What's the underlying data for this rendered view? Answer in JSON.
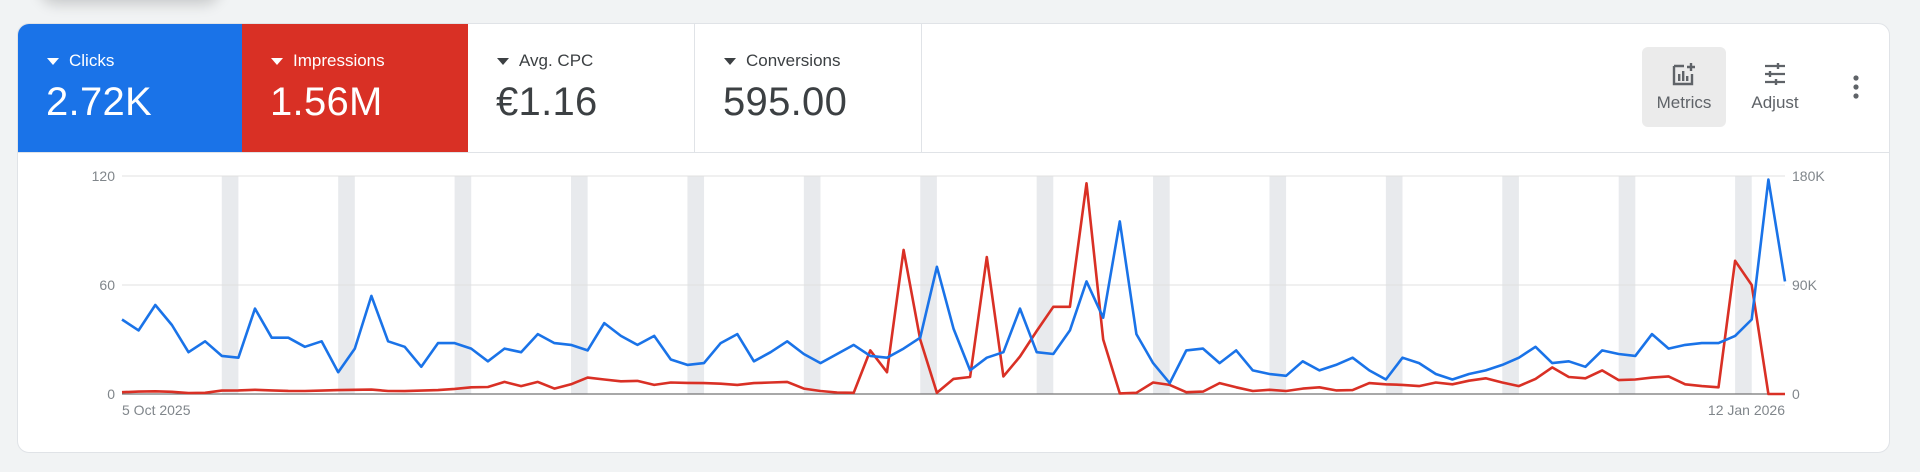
{
  "metrics": [
    {
      "label": "Clicks",
      "value": "2.72K",
      "color": "#1a73e8"
    },
    {
      "label": "Impressions",
      "value": "1.56M",
      "color": "#d93025"
    },
    {
      "label": "Avg. CPC",
      "value": "€1.16"
    },
    {
      "label": "Conversions",
      "value": "595.00"
    }
  ],
  "toolbar": {
    "metrics_label": "Metrics",
    "adjust_label": "Adjust",
    "more_icon": "more-vert-icon"
  },
  "chart_data": {
    "type": "line",
    "title": "",
    "x_start_label": "5 Oct 2025",
    "x_end_label": "12 Jan 2026",
    "left_axis": {
      "label": "Clicks",
      "ticks": [
        "0",
        "60",
        "120"
      ],
      "range": [
        0,
        120
      ]
    },
    "right_axis": {
      "label": "Impressions",
      "ticks": [
        "0",
        "90K",
        "180K"
      ],
      "range": [
        0,
        180000
      ]
    },
    "weekend_bands": true,
    "grid": true,
    "series": [
      {
        "name": "Clicks",
        "axis": "left",
        "color": "#1a73e8",
        "values": [
          41,
          35,
          49,
          38,
          23,
          29,
          21,
          20,
          47,
          31,
          31,
          26,
          29,
          12,
          25,
          54,
          29,
          26,
          15,
          28,
          28,
          25,
          18,
          25,
          23,
          33,
          28,
          27,
          24,
          39,
          32,
          27,
          32,
          19,
          16,
          17,
          28,
          33,
          18,
          23,
          29,
          22,
          17,
          22,
          27,
          21,
          20,
          25,
          31,
          70,
          36,
          13,
          20,
          23,
          47,
          23,
          22,
          35,
          62,
          42,
          95,
          33,
          17,
          6,
          24,
          25,
          17,
          24,
          13,
          11,
          10,
          18,
          13,
          16,
          20,
          13,
          8,
          20,
          17,
          11,
          8,
          11,
          13,
          16,
          20,
          26,
          17,
          18,
          15,
          24,
          22,
          21,
          33,
          25,
          27,
          28,
          28,
          32,
          41,
          118,
          62
        ]
      },
      {
        "name": "Impressions",
        "axis": "right",
        "color": "#d93025",
        "values": [
          1500,
          2000,
          2200,
          1800,
          800,
          1000,
          2800,
          3000,
          3500,
          3000,
          2600,
          2500,
          2800,
          3200,
          3500,
          3600,
          2500,
          2400,
          2800,
          3200,
          4200,
          5500,
          5800,
          10000,
          6500,
          10000,
          4500,
          8000,
          13500,
          12000,
          10500,
          10800,
          7500,
          9500,
          9200,
          9000,
          8500,
          7500,
          9000,
          9500,
          10000,
          4500,
          2500,
          1200,
          1000,
          36000,
          18000,
          119000,
          45000,
          1000,
          12500,
          14000,
          113000,
          14500,
          31000,
          52000,
          72000,
          72000,
          174000,
          45000,
          500,
          1000,
          9500,
          7500,
          1500,
          2000,
          9000,
          5500,
          2500,
          3500,
          2500,
          4500,
          5500,
          3000,
          3200,
          9000,
          8000,
          7500,
          6500,
          9500,
          8000,
          11000,
          13000,
          9500,
          6500,
          12500,
          22000,
          14000,
          13000,
          19500,
          11500,
          12000,
          13500,
          14500,
          8000,
          6500,
          5500,
          110000,
          90000,
          0,
          0
        ]
      }
    ]
  }
}
